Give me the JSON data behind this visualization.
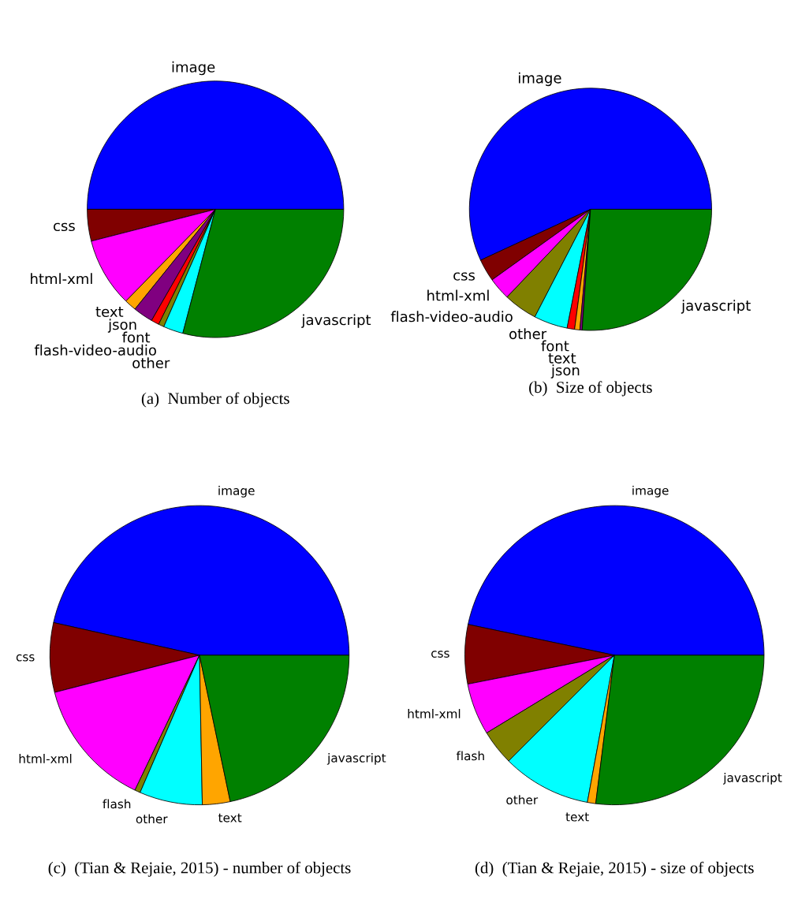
{
  "chart_data": [
    {
      "type": "pie",
      "title": "(a)  Number of objects",
      "categories": [
        "image",
        "css",
        "html-xml",
        "text",
        "json",
        "font",
        "flash-video-audio",
        "other",
        "javascript"
      ],
      "values": [
        50,
        4,
        8.7,
        1.5,
        2.5,
        1,
        0.7,
        2.5,
        29.1
      ],
      "colors": [
        "#0000ff",
        "#800000",
        "#ff00ff",
        "#ffa500",
        "#800080",
        "#ff0000",
        "#808000",
        "#00ffff",
        "#008000"
      ]
    },
    {
      "type": "pie",
      "title": "(b)  Size of objects",
      "categories": [
        "image",
        "css",
        "html-xml",
        "flash-video-audio",
        "other",
        "font",
        "text",
        "json",
        "javascript"
      ],
      "values": [
        56.9,
        3,
        3,
        4.5,
        4.5,
        1,
        0.7,
        0.3,
        26.1
      ],
      "colors": [
        "#0000ff",
        "#800000",
        "#ff00ff",
        "#808000",
        "#00ffff",
        "#ff0000",
        "#ffa500",
        "#800080",
        "#008000"
      ]
    },
    {
      "type": "pie",
      "title": "(c)  (Tian & Rejaie, 2015) - number of objects",
      "categories": [
        "image",
        "css",
        "html-xml",
        "flash",
        "other",
        "text",
        "javascript"
      ],
      "values": [
        46.5,
        7.5,
        13.9,
        0.6,
        6.8,
        3,
        21.7
      ],
      "colors": [
        "#0000ff",
        "#800000",
        "#ff00ff",
        "#808000",
        "#00ffff",
        "#ffa500",
        "#008000"
      ]
    },
    {
      "type": "pie",
      "title": "(d)  (Tian & Rejaie, 2015) - size of objects",
      "categories": [
        "image",
        "css",
        "html-xml",
        "flash",
        "other",
        "text",
        "javascript"
      ],
      "values": [
        46.7,
        6.4,
        5.6,
        3.8,
        9.6,
        0.9,
        27.0
      ],
      "colors": [
        "#0000ff",
        "#800000",
        "#ff00ff",
        "#808000",
        "#00ffff",
        "#ffa500",
        "#008000"
      ]
    }
  ]
}
